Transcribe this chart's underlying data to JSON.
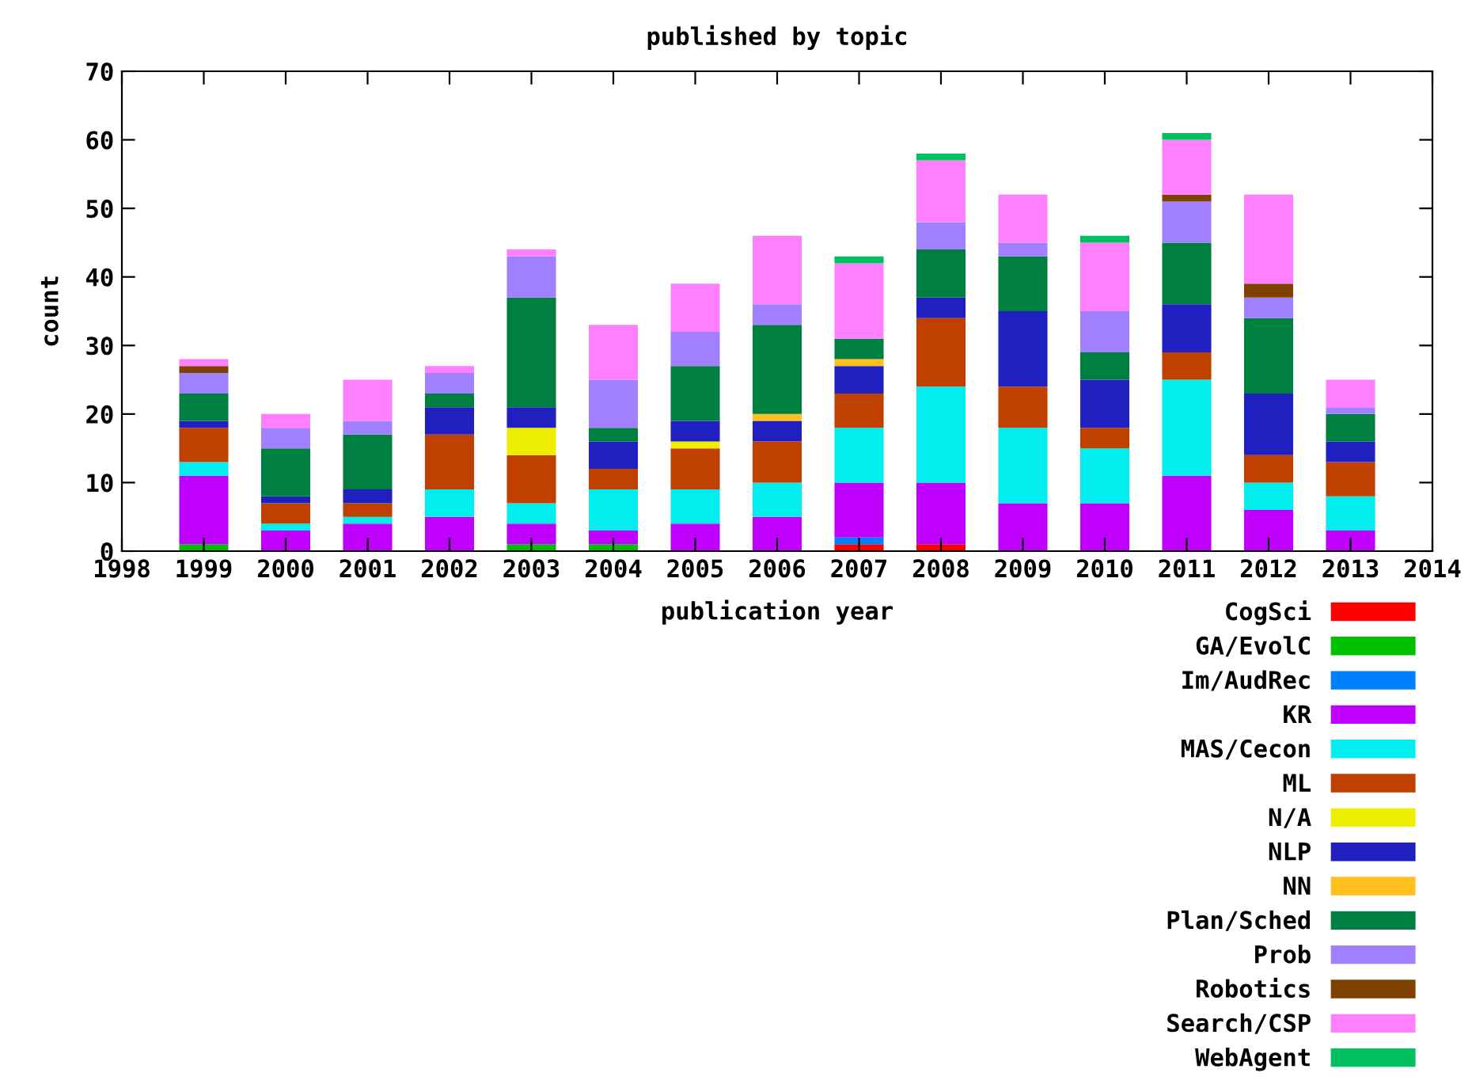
{
  "chart_data": {
    "type": "bar",
    "stacked": true,
    "title": "published by topic",
    "xlabel": "publication year",
    "ylabel": "count",
    "x": [
      1999,
      2000,
      2001,
      2002,
      2003,
      2004,
      2005,
      2006,
      2007,
      2008,
      2009,
      2010,
      2011,
      2012,
      2013
    ],
    "xlim": [
      1998,
      2014
    ],
    "xticks": [
      1998,
      1999,
      2000,
      2001,
      2002,
      2003,
      2004,
      2005,
      2006,
      2007,
      2008,
      2009,
      2010,
      2011,
      2012,
      2013,
      2014
    ],
    "ylim": [
      0,
      70
    ],
    "yticks": [
      0,
      10,
      20,
      30,
      40,
      50,
      60,
      70
    ],
    "grid": false,
    "legend": "bottom right",
    "series": [
      {
        "name": "CogSci",
        "color": "#ff0000",
        "values": [
          0,
          0,
          0,
          0,
          0,
          0,
          0,
          0,
          1,
          1,
          0,
          0,
          0,
          0,
          0
        ]
      },
      {
        "name": "GA/EvolC",
        "color": "#00c000",
        "values": [
          1,
          0,
          0,
          0,
          1,
          1,
          0,
          0,
          0,
          0,
          0,
          0,
          0,
          0,
          0
        ]
      },
      {
        "name": "Im/AudRec",
        "color": "#0080ff",
        "values": [
          0,
          0,
          0,
          0,
          0,
          0,
          0,
          0,
          1,
          0,
          0,
          0,
          0,
          0,
          0
        ]
      },
      {
        "name": "KR",
        "color": "#c000ff",
        "values": [
          10,
          3,
          4,
          5,
          3,
          2,
          4,
          5,
          8,
          9,
          7,
          7,
          11,
          6,
          3
        ]
      },
      {
        "name": "MAS/Cecon",
        "color": "#00eeee",
        "values": [
          2,
          1,
          1,
          4,
          3,
          6,
          5,
          5,
          8,
          14,
          11,
          8,
          14,
          4,
          5
        ]
      },
      {
        "name": "ML",
        "color": "#c04000",
        "values": [
          5,
          3,
          2,
          8,
          7,
          3,
          6,
          6,
          5,
          10,
          6,
          3,
          4,
          4,
          5
        ]
      },
      {
        "name": "N/A",
        "color": "#eeee00",
        "values": [
          0,
          0,
          0,
          0,
          4,
          0,
          1,
          0,
          0,
          0,
          0,
          0,
          0,
          0,
          0
        ]
      },
      {
        "name": "NLP",
        "color": "#2020c0",
        "values": [
          1,
          1,
          2,
          4,
          3,
          4,
          3,
          3,
          4,
          3,
          11,
          7,
          7,
          9,
          3
        ]
      },
      {
        "name": "NN",
        "color": "#ffc020",
        "values": [
          0,
          0,
          0,
          0,
          0,
          0,
          0,
          1,
          1,
          0,
          0,
          0,
          0,
          0,
          0
        ]
      },
      {
        "name": "Plan/Sched",
        "color": "#008040",
        "values": [
          4,
          7,
          8,
          2,
          16,
          2,
          8,
          13,
          3,
          7,
          8,
          4,
          9,
          11,
          4
        ]
      },
      {
        "name": "Prob",
        "color": "#a080ff",
        "values": [
          3,
          3,
          2,
          3,
          6,
          7,
          5,
          3,
          0,
          4,
          2,
          6,
          6,
          3,
          1
        ]
      },
      {
        "name": "Robotics",
        "color": "#804000",
        "values": [
          1,
          0,
          0,
          0,
          0,
          0,
          0,
          0,
          0,
          0,
          0,
          0,
          1,
          2,
          0
        ]
      },
      {
        "name": "Search/CSP",
        "color": "#ff80ff",
        "values": [
          1,
          2,
          6,
          1,
          1,
          8,
          7,
          10,
          11,
          9,
          7,
          10,
          8,
          13,
          4
        ]
      },
      {
        "name": "WebAgent",
        "color": "#00c060",
        "values": [
          0,
          0,
          0,
          0,
          0,
          0,
          0,
          0,
          1,
          1,
          0,
          1,
          1,
          0,
          0
        ]
      }
    ]
  }
}
